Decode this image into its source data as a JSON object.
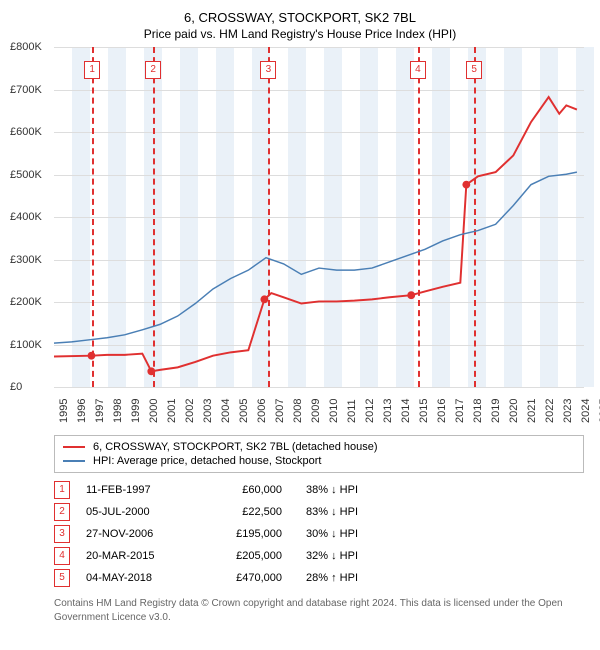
{
  "title_line1": "6, CROSSWAY, STOCKPORT, SK2 7BL",
  "title_line2": "Price paid vs. HM Land Registry's House Price Index (HPI)",
  "chart": {
    "type": "line",
    "y": {
      "min": 0,
      "max": 800000,
      "step": 100000,
      "ticks": [
        "£0",
        "£100K",
        "£200K",
        "£300K",
        "£400K",
        "£500K",
        "£600K",
        "£700K",
        "£800K"
      ]
    },
    "x": {
      "min": 1995,
      "max": 2025,
      "ticks": [
        1995,
        1996,
        1997,
        1998,
        1999,
        2000,
        2001,
        2002,
        2003,
        2004,
        2005,
        2006,
        2007,
        2008,
        2009,
        2010,
        2011,
        2012,
        2013,
        2014,
        2015,
        2016,
        2017,
        2018,
        2019,
        2020,
        2021,
        2022,
        2023,
        2024,
        2025
      ]
    },
    "bands_even_fill": "#eaf1f8",
    "grid_color": "#dddddd",
    "series": [
      {
        "name": "6, CROSSWAY, STOCKPORT, SK2 7BL (detached house)",
        "color": "#e03030",
        "width": 2,
        "points": [
          [
            1995,
            58000
          ],
          [
            1997.12,
            60000
          ],
          [
            1998,
            62000
          ],
          [
            1999,
            62000
          ],
          [
            2000,
            65000
          ],
          [
            2000.51,
            22500
          ],
          [
            2001,
            26000
          ],
          [
            2002,
            32000
          ],
          [
            2003,
            45000
          ],
          [
            2004,
            60000
          ],
          [
            2005,
            68000
          ],
          [
            2006,
            73000
          ],
          [
            2006.91,
            195000
          ],
          [
            2007.3,
            210000
          ],
          [
            2008,
            200000
          ],
          [
            2009,
            185000
          ],
          [
            2010,
            190000
          ],
          [
            2011,
            190000
          ],
          [
            2012,
            192000
          ],
          [
            2013,
            195000
          ],
          [
            2014,
            200000
          ],
          [
            2015.22,
            205000
          ],
          [
            2016,
            214000
          ],
          [
            2017,
            225000
          ],
          [
            2018,
            235000
          ],
          [
            2018.34,
            470000
          ],
          [
            2019,
            490000
          ],
          [
            2020,
            500000
          ],
          [
            2021,
            540000
          ],
          [
            2022,
            620000
          ],
          [
            2023,
            680000
          ],
          [
            2023.6,
            640000
          ],
          [
            2024,
            660000
          ],
          [
            2024.6,
            650000
          ]
        ]
      },
      {
        "name": "HPI: Average price, detached house, Stockport",
        "color": "#4a7fb5",
        "width": 1.5,
        "points": [
          [
            1995,
            90000
          ],
          [
            1996,
            93000
          ],
          [
            1997,
            98000
          ],
          [
            1998,
            103000
          ],
          [
            1999,
            110000
          ],
          [
            2000,
            122000
          ],
          [
            2001,
            135000
          ],
          [
            2002,
            155000
          ],
          [
            2003,
            185000
          ],
          [
            2004,
            220000
          ],
          [
            2005,
            245000
          ],
          [
            2006,
            265000
          ],
          [
            2007,
            295000
          ],
          [
            2008,
            280000
          ],
          [
            2009,
            255000
          ],
          [
            2010,
            270000
          ],
          [
            2011,
            265000
          ],
          [
            2012,
            265000
          ],
          [
            2013,
            270000
          ],
          [
            2014,
            285000
          ],
          [
            2015,
            300000
          ],
          [
            2016,
            315000
          ],
          [
            2017,
            335000
          ],
          [
            2018,
            350000
          ],
          [
            2019,
            360000
          ],
          [
            2020,
            375000
          ],
          [
            2021,
            420000
          ],
          [
            2022,
            470000
          ],
          [
            2023,
            490000
          ],
          [
            2024,
            495000
          ],
          [
            2024.6,
            500000
          ]
        ]
      }
    ],
    "markers": [
      {
        "n": "1",
        "x": 1997.12,
        "y": 60000
      },
      {
        "n": "2",
        "x": 2000.51,
        "y": 22500
      },
      {
        "n": "3",
        "x": 2006.91,
        "y": 195000
      },
      {
        "n": "4",
        "x": 2015.22,
        "y": 205000
      },
      {
        "n": "5",
        "x": 2018.34,
        "y": 470000
      }
    ],
    "label_fontsize": 11
  },
  "legend": [
    {
      "color": "#e03030",
      "label": "6, CROSSWAY, STOCKPORT, SK2 7BL (detached house)"
    },
    {
      "color": "#4a7fb5",
      "label": "HPI: Average price, detached house, Stockport"
    }
  ],
  "transactions": [
    {
      "n": "1",
      "date": "11-FEB-1997",
      "price": "£60,000",
      "rel": "38%",
      "arrow": "↓",
      "suffix": "HPI"
    },
    {
      "n": "2",
      "date": "05-JUL-2000",
      "price": "£22,500",
      "rel": "83%",
      "arrow": "↓",
      "suffix": "HPI"
    },
    {
      "n": "3",
      "date": "27-NOV-2006",
      "price": "£195,000",
      "rel": "30%",
      "arrow": "↓",
      "suffix": "HPI"
    },
    {
      "n": "4",
      "date": "20-MAR-2015",
      "price": "£205,000",
      "rel": "32%",
      "arrow": "↓",
      "suffix": "HPI"
    },
    {
      "n": "5",
      "date": "04-MAY-2018",
      "price": "£470,000",
      "rel": "28%",
      "arrow": "↑",
      "suffix": "HPI"
    }
  ],
  "copyright": "Contains HM Land Registry data © Crown copyright and database right 2024. This data is licensed under the Open Government Licence v3.0."
}
